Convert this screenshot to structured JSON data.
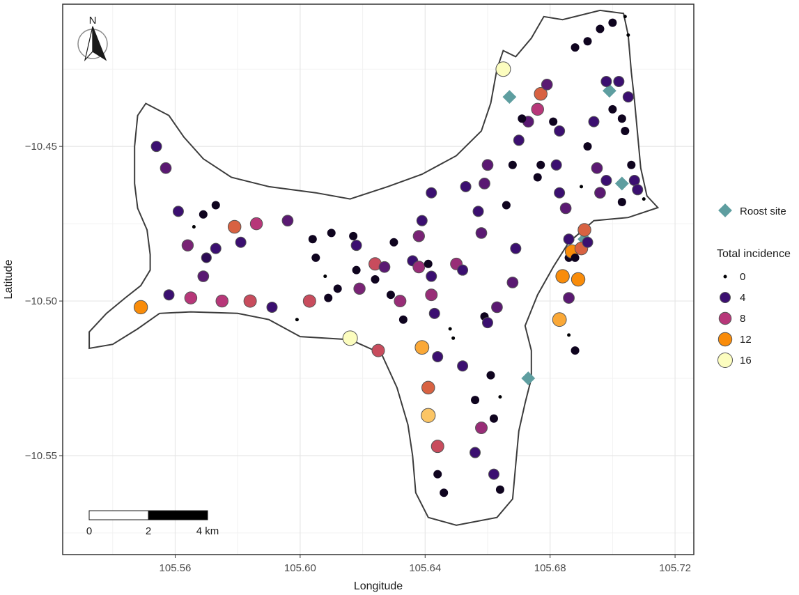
{
  "chart_data": {
    "type": "scatter",
    "xlabel": "Longitude",
    "ylabel": "Latitude",
    "xlim": [
      105.524,
      105.726
    ],
    "ylim": [
      -10.582,
      -10.404
    ],
    "xticks": [
      105.56,
      105.6,
      105.64,
      105.68,
      105.72
    ],
    "xtick_labels": [
      "105.56",
      "105.60",
      "105.64",
      "105.68",
      "105.72"
    ],
    "yticks": [
      -10.45,
      -10.5,
      -10.55
    ],
    "ytick_labels": [
      "−10.45",
      "−10.50",
      "−10.55"
    ],
    "grid": true,
    "north_label": "N",
    "scalebar": {
      "labels": [
        "0",
        "2",
        "4 km"
      ],
      "length_km": 4
    },
    "roost_legend": {
      "label": "Roost site",
      "color": "#5e9ea0"
    },
    "incidence_legend": {
      "title": "Total incidence",
      "levels": [
        {
          "label": "0",
          "value": 0,
          "color": "#000004"
        },
        {
          "label": "4",
          "value": 4,
          "color": "#3b0f70"
        },
        {
          "label": "8",
          "value": 8,
          "color": "#b73779"
        },
        {
          "label": "12",
          "value": 12,
          "color": "#f98c0a"
        },
        {
          "label": "16",
          "value": 16,
          "color": "#fcfdbf"
        }
      ]
    },
    "coastline": [
      [
        105.5506,
        -10.4361
      ],
      [
        105.558,
        -10.44
      ],
      [
        105.5628,
        -10.447
      ],
      [
        105.569,
        -10.454
      ],
      [
        105.578,
        -10.46
      ],
      [
        105.59,
        -10.463
      ],
      [
        105.605,
        -10.465
      ],
      [
        105.616,
        -10.467
      ],
      [
        105.628,
        -10.463
      ],
      [
        105.639,
        -10.459
      ],
      [
        105.65,
        -10.453
      ],
      [
        105.658,
        -10.445
      ],
      [
        105.661,
        -10.436
      ],
      [
        105.663,
        -10.425
      ],
      [
        105.665,
        -10.419
      ],
      [
        105.669,
        -10.421
      ],
      [
        105.674,
        -10.415
      ],
      [
        105.678,
        -10.408
      ],
      [
        105.684,
        -10.409
      ],
      [
        105.696,
        -10.406
      ],
      [
        105.7035,
        -10.407
      ],
      [
        105.705,
        -10.414
      ],
      [
        105.706,
        -10.426
      ],
      [
        105.707,
        -10.435
      ],
      [
        105.708,
        -10.446
      ],
      [
        105.709,
        -10.457
      ],
      [
        105.711,
        -10.466
      ],
      [
        105.7145,
        -10.4698
      ],
      [
        105.705,
        -10.473
      ],
      [
        105.694,
        -10.474
      ],
      [
        105.686,
        -10.481
      ],
      [
        105.681,
        -10.489
      ],
      [
        105.676,
        -10.498
      ],
      [
        105.672,
        -10.508
      ],
      [
        105.674,
        -10.516
      ],
      [
        105.674,
        -10.525
      ],
      [
        105.672,
        -10.533
      ],
      [
        105.67,
        -10.542
      ],
      [
        105.669,
        -10.553
      ],
      [
        105.668,
        -10.564
      ],
      [
        105.663,
        -10.57
      ],
      [
        105.65,
        -10.5725
      ],
      [
        105.641,
        -10.57
      ],
      [
        105.637,
        -10.562
      ],
      [
        105.636,
        -10.55
      ],
      [
        105.6345,
        -10.54
      ],
      [
        105.631,
        -10.528
      ],
      [
        105.626,
        -10.517
      ],
      [
        105.616,
        -10.5125
      ],
      [
        105.6,
        -10.5115
      ],
      [
        105.59,
        -10.506
      ],
      [
        105.58,
        -10.504
      ],
      [
        105.565,
        -10.5035
      ],
      [
        105.555,
        -10.504
      ],
      [
        105.548,
        -10.509
      ],
      [
        105.54,
        -10.514
      ],
      [
        105.5325,
        -10.5153
      ],
      [
        105.5325,
        -10.51
      ],
      [
        105.538,
        -10.504
      ],
      [
        105.544,
        -10.499
      ],
      [
        105.549,
        -10.495
      ],
      [
        105.552,
        -10.49
      ],
      [
        105.552,
        -10.485
      ],
      [
        105.551,
        -10.477
      ],
      [
        105.548,
        -10.47
      ],
      [
        105.547,
        -10.462
      ],
      [
        105.547,
        -10.45
      ],
      [
        105.548,
        -10.44
      ],
      [
        105.5506,
        -10.4361
      ]
    ],
    "roost_sites": [
      [
        105.667,
        -10.434
      ],
      [
        105.699,
        -10.432
      ],
      [
        105.703,
        -10.462
      ],
      [
        105.691,
        -10.48
      ],
      [
        105.673,
        -10.525
      ]
    ],
    "points": [
      [
        105.554,
        -10.45,
        4
      ],
      [
        105.557,
        -10.457,
        5
      ],
      [
        105.561,
        -10.471,
        4
      ],
      [
        105.564,
        -10.482,
        6
      ],
      [
        105.566,
        -10.476,
        0
      ],
      [
        105.569,
        -10.472,
        1
      ],
      [
        105.57,
        -10.486,
        3
      ],
      [
        105.569,
        -10.492,
        5
      ],
      [
        105.573,
        -10.483,
        4
      ],
      [
        105.573,
        -10.469,
        1
      ],
      [
        105.579,
        -10.476,
        10
      ],
      [
        105.581,
        -10.481,
        4
      ],
      [
        105.586,
        -10.475,
        8
      ],
      [
        105.596,
        -10.474,
        5
      ],
      [
        105.558,
        -10.498,
        4
      ],
      [
        105.565,
        -10.499,
        8
      ],
      [
        105.575,
        -10.5,
        8
      ],
      [
        105.584,
        -10.5,
        9
      ],
      [
        105.591,
        -10.502,
        4
      ],
      [
        105.599,
        -10.506,
        0
      ],
      [
        105.549,
        -10.502,
        12
      ],
      [
        105.603,
        -10.5,
        9
      ],
      [
        105.604,
        -10.48,
        1
      ],
      [
        105.605,
        -10.486,
        1
      ],
      [
        105.608,
        -10.492,
        0
      ],
      [
        105.61,
        -10.478,
        1
      ],
      [
        105.609,
        -10.499,
        1
      ],
      [
        105.612,
        -10.496,
        1
      ],
      [
        105.617,
        -10.479,
        1
      ],
      [
        105.618,
        -10.49,
        1
      ],
      [
        105.618,
        -10.482,
        4
      ],
      [
        105.619,
        -10.496,
        6
      ],
      [
        105.616,
        -10.512,
        16
      ],
      [
        105.624,
        -10.488,
        9
      ],
      [
        105.624,
        -10.493,
        1
      ],
      [
        105.625,
        -10.516,
        9
      ],
      [
        105.627,
        -10.489,
        5
      ],
      [
        105.629,
        -10.498,
        1
      ],
      [
        105.63,
        -10.481,
        1
      ],
      [
        105.632,
        -10.5,
        7
      ],
      [
        105.633,
        -10.506,
        1
      ],
      [
        105.636,
        -10.487,
        4
      ],
      [
        105.638,
        -10.479,
        6
      ],
      [
        105.638,
        -10.489,
        7
      ],
      [
        105.639,
        -10.474,
        4
      ],
      [
        105.642,
        -10.465,
        4
      ],
      [
        105.641,
        -10.488,
        1
      ],
      [
        105.642,
        -10.492,
        4
      ],
      [
        105.642,
        -10.498,
        7
      ],
      [
        105.643,
        -10.504,
        4
      ],
      [
        105.639,
        -10.515,
        13
      ],
      [
        105.641,
        -10.528,
        10
      ],
      [
        105.641,
        -10.537,
        14
      ],
      [
        105.644,
        -10.518,
        4
      ],
      [
        105.648,
        -10.509,
        0
      ],
      [
        105.649,
        -10.512,
        0
      ],
      [
        105.65,
        -10.488,
        7
      ],
      [
        105.652,
        -10.49,
        4
      ],
      [
        105.653,
        -10.463,
        4
      ],
      [
        105.657,
        -10.471,
        4
      ],
      [
        105.658,
        -10.478,
        5
      ],
      [
        105.659,
        -10.462,
        5
      ],
      [
        105.66,
        -10.456,
        5
      ],
      [
        105.659,
        -10.505,
        1
      ],
      [
        105.66,
        -10.507,
        4
      ],
      [
        105.661,
        -10.524,
        1
      ],
      [
        105.652,
        -10.521,
        4
      ],
      [
        105.656,
        -10.532,
        1
      ],
      [
        105.662,
        -10.538,
        1
      ],
      [
        105.664,
        -10.531,
        0
      ],
      [
        105.658,
        -10.541,
        7
      ],
      [
        105.656,
        -10.549,
        4
      ],
      [
        105.662,
        -10.556,
        4
      ],
      [
        105.664,
        -10.561,
        1
      ],
      [
        105.663,
        -10.502,
        5
      ],
      [
        105.644,
        -10.547,
        9
      ],
      [
        105.644,
        -10.556,
        1
      ],
      [
        105.646,
        -10.562,
        1
      ],
      [
        105.668,
        -10.494,
        5
      ],
      [
        105.669,
        -10.483,
        4
      ],
      [
        105.666,
        -10.469,
        1
      ],
      [
        105.668,
        -10.456,
        1
      ],
      [
        105.67,
        -10.448,
        4
      ],
      [
        105.673,
        -10.442,
        5
      ],
      [
        105.676,
        -10.46,
        1
      ],
      [
        105.677,
        -10.456,
        1
      ],
      [
        105.676,
        -10.438,
        8
      ],
      [
        105.677,
        -10.433,
        10
      ],
      [
        105.679,
        -10.43,
        5
      ],
      [
        105.665,
        -10.425,
        16
      ],
      [
        105.671,
        -10.441,
        1
      ],
      [
        105.681,
        -10.442,
        1
      ],
      [
        105.683,
        -10.445,
        4
      ],
      [
        105.682,
        -10.456,
        4
      ],
      [
        105.683,
        -10.465,
        4
      ],
      [
        105.685,
        -10.47,
        5
      ],
      [
        105.686,
        -10.48,
        4
      ],
      [
        105.686,
        -10.486,
        1
      ],
      [
        105.684,
        -10.492,
        12
      ],
      [
        105.687,
        -10.484,
        12
      ],
      [
        105.688,
        -10.486,
        1
      ],
      [
        105.69,
        -10.483,
        10
      ],
      [
        105.689,
        -10.493,
        12
      ],
      [
        105.686,
        -10.499,
        5
      ],
      [
        105.683,
        -10.506,
        13
      ],
      [
        105.686,
        -10.511,
        0
      ],
      [
        105.688,
        -10.516,
        1
      ],
      [
        105.691,
        -10.477,
        10
      ],
      [
        105.692,
        -10.481,
        4
      ],
      [
        105.69,
        -10.463,
        0
      ],
      [
        105.692,
        -10.45,
        1
      ],
      [
        105.694,
        -10.442,
        4
      ],
      [
        105.695,
        -10.457,
        5
      ],
      [
        105.696,
        -10.465,
        5
      ],
      [
        105.698,
        -10.461,
        4
      ],
      [
        105.688,
        -10.418,
        1
      ],
      [
        105.692,
        -10.416,
        1
      ],
      [
        105.696,
        -10.412,
        1
      ],
      [
        105.7,
        -10.41,
        1
      ],
      [
        105.704,
        -10.408,
        0
      ],
      [
        105.705,
        -10.414,
        0
      ],
      [
        105.698,
        -10.429,
        4
      ],
      [
        105.702,
        -10.429,
        4
      ],
      [
        105.705,
        -10.434,
        4
      ],
      [
        105.7,
        -10.438,
        1
      ],
      [
        105.703,
        -10.441,
        1
      ],
      [
        105.704,
        -10.445,
        1
      ],
      [
        105.706,
        -10.456,
        1
      ],
      [
        105.707,
        -10.461,
        4
      ],
      [
        105.708,
        -10.464,
        4
      ],
      [
        105.71,
        -10.467,
        0
      ],
      [
        105.703,
        -10.468,
        1
      ]
    ]
  }
}
